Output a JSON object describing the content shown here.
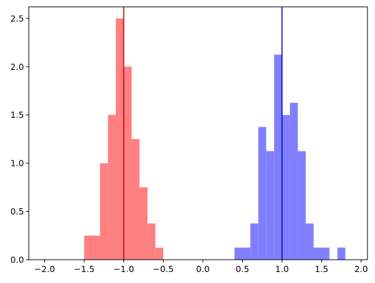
{
  "chart_data": {
    "type": "bar",
    "title": "",
    "xlabel": "",
    "ylabel": "",
    "xlim": [
      -2.2,
      2.08
    ],
    "ylim": [
      0,
      2.62
    ],
    "grid": false,
    "x_ticks": [
      -2.0,
      -1.5,
      -1.0,
      -0.5,
      0.0,
      0.5,
      1.0,
      1.5,
      2.0
    ],
    "x_tick_labels": [
      "−2.0",
      "−1.5",
      "−1.0",
      "−0.5",
      "0.0",
      "0.5",
      "1.0",
      "1.5",
      "2.0"
    ],
    "y_ticks": [
      0.0,
      0.5,
      1.0,
      1.5,
      2.0,
      2.5
    ],
    "y_tick_labels": [
      "0.0",
      "0.5",
      "1.0",
      "1.5",
      "2.0",
      "2.5"
    ],
    "series": [
      {
        "color": "#ff8080",
        "bin_width": 0.1,
        "bins": [
          {
            "x0": -1.5,
            "x1": -1.3,
            "y": 0.25
          },
          {
            "x0": -1.3,
            "x1": -1.2,
            "y": 1.0
          },
          {
            "x0": -1.2,
            "x1": -1.1,
            "y": 1.5
          },
          {
            "x0": -1.1,
            "x1": -1.0,
            "y": 2.5
          },
          {
            "x0": -1.0,
            "x1": -0.9,
            "y": 2.0
          },
          {
            "x0": -0.9,
            "x1": -0.8,
            "y": 1.25
          },
          {
            "x0": -0.8,
            "x1": -0.7,
            "y": 0.75
          },
          {
            "x0": -0.7,
            "x1": -0.6,
            "y": 0.375
          },
          {
            "x0": -0.6,
            "x1": -0.5,
            "y": 0.125
          }
        ]
      },
      {
        "color": "#8080ff",
        "bins": [
          {
            "x0": 0.4,
            "x1": 0.6,
            "y": 0.125
          },
          {
            "x0": 0.6,
            "x1": 0.7,
            "y": 0.375
          },
          {
            "x0": 0.7,
            "x1": 0.8,
            "y": 1.375
          },
          {
            "x0": 0.8,
            "x1": 0.9,
            "y": 1.125
          },
          {
            "x0": 0.9,
            "x1": 1.0,
            "y": 2.125
          },
          {
            "x0": 1.0,
            "x1": 1.1,
            "y": 1.5
          },
          {
            "x0": 1.1,
            "x1": 1.2,
            "y": 1.625
          },
          {
            "x0": 1.2,
            "x1": 1.3,
            "y": 1.125
          },
          {
            "x0": 1.3,
            "x1": 1.4,
            "y": 0.375
          },
          {
            "x0": 1.4,
            "x1": 1.6,
            "y": 0.125
          },
          {
            "x0": 1.7,
            "x1": 1.8,
            "y": 0.125
          }
        ]
      }
    ],
    "vlines": [
      {
        "x": -1.0,
        "color": "#cc0000"
      },
      {
        "x": 1.0,
        "color": "#0000cc"
      }
    ]
  }
}
